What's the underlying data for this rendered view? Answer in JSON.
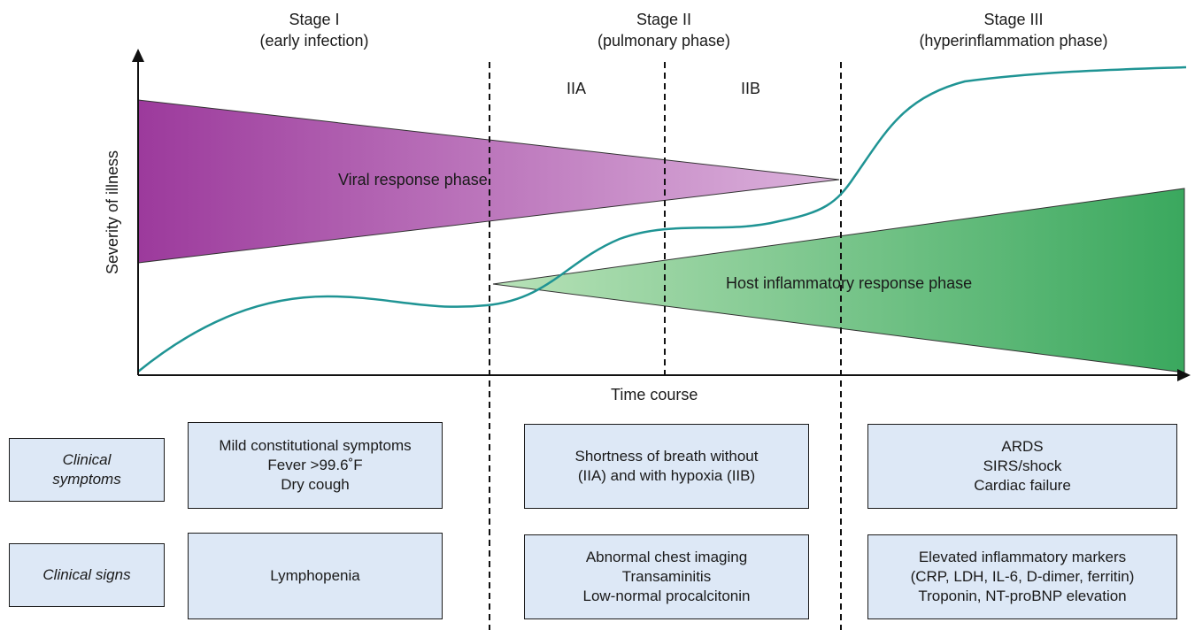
{
  "stages": [
    {
      "title": "Stage I",
      "subtitle": "(early infection)"
    },
    {
      "title": "Stage II",
      "subtitle": "(pulmonary phase)"
    },
    {
      "title": "Stage III",
      "subtitle": "(hyperinflammation phase)"
    }
  ],
  "substages": [
    "IIA",
    "IIB"
  ],
  "axes": {
    "y_label": "Severity of illness",
    "x_label": "Time course"
  },
  "phases": {
    "viral": "Viral response phase",
    "host": "Host inflammatory response phase"
  },
  "colors": {
    "viral_start": "#9c3a9c",
    "viral_end": "#dcb3dc",
    "host_start": "#b8e2b8",
    "host_end": "#3aa85e",
    "severity_curve": "#1f9494",
    "box_fill": "#dde8f6"
  },
  "rows": {
    "symptoms_label": [
      "Clinical",
      "symptoms"
    ],
    "signs_label": "Clinical signs"
  },
  "symptoms": {
    "stage1": [
      "Mild constitutional symptoms",
      "Fever >99.6˚F",
      "Dry cough"
    ],
    "stage2": [
      "Shortness of breath without",
      "(IIA) and with hypoxia (IIB)"
    ],
    "stage3": [
      "ARDS",
      "SIRS/shock",
      "Cardiac failure"
    ]
  },
  "signs": {
    "stage1": [
      "Lymphopenia"
    ],
    "stage2": [
      "Abnormal chest imaging",
      "Transaminitis",
      "Low-normal procalcitonin"
    ],
    "stage3": [
      "Elevated inflammatory markers",
      "(CRP, LDH, IL-6, D-dimer, ferritin)",
      "Troponin, NT-proBNP elevation"
    ]
  }
}
